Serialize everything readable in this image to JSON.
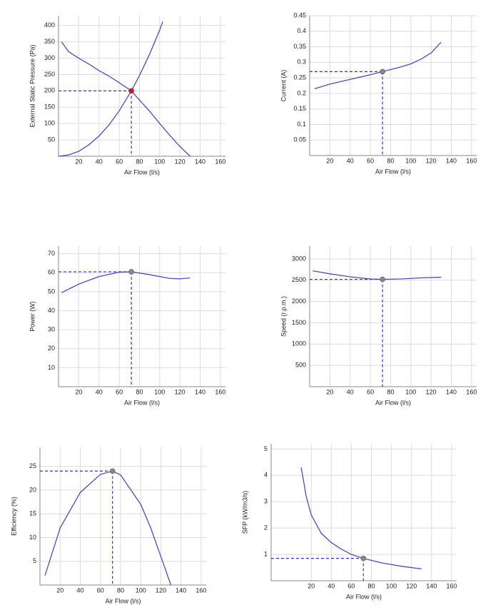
{
  "chart_data": [
    {
      "type": "line",
      "x_label": "Air Flow (l/s)",
      "y_label": "External Static Pressure (Pa)",
      "xlim": [
        0,
        165
      ],
      "ylim": [
        0,
        430
      ],
      "xticks": [
        20,
        40,
        60,
        80,
        100,
        120,
        140,
        160
      ],
      "yticks": [
        50,
        100,
        150,
        200,
        250,
        300,
        350,
        400
      ],
      "grid": true,
      "series": [
        {
          "color": "#4c4cc0",
          "x": [
            3,
            10,
            20,
            30,
            40,
            50,
            60,
            72,
            80,
            90,
            100,
            110,
            120,
            130
          ],
          "values": [
            350,
            320,
            300,
            282,
            262,
            245,
            225,
            200,
            172,
            138,
            100,
            64,
            30,
            0
          ]
        },
        {
          "color": "#4c4cc0",
          "x": [
            0,
            10,
            20,
            30,
            40,
            50,
            60,
            72,
            80,
            90,
            100,
            103
          ],
          "values": [
            0,
            4,
            15,
            35,
            62,
            96,
            139,
            200,
            247,
            312,
            386,
            412
          ]
        }
      ],
      "point": {
        "x": 72,
        "y": 200,
        "color": "#dd1111"
      }
    },
    {
      "type": "line",
      "x_label": "Air Flow (l/s)",
      "y_label": "Current (A)",
      "xlim": [
        0,
        165
      ],
      "ylim": [
        0,
        0.45
      ],
      "xticks": [
        20,
        40,
        60,
        80,
        100,
        120,
        140,
        160
      ],
      "yticks": [
        0.05,
        0.1,
        0.15,
        0.2,
        0.25,
        0.3,
        0.35,
        0.4,
        0.45
      ],
      "grid": true,
      "series": [
        {
          "color": "#4c4cc0",
          "x": [
            5,
            20,
            40,
            60,
            72,
            90,
            100,
            110,
            120,
            130
          ],
          "values": [
            0.215,
            0.23,
            0.245,
            0.26,
            0.27,
            0.285,
            0.295,
            0.31,
            0.33,
            0.365
          ]
        }
      ],
      "point": {
        "x": 72,
        "y": 0.27,
        "color": "#888888"
      }
    },
    {
      "type": "line",
      "x_label": "Air Flow (l/s)",
      "y_label": "Power (W)",
      "xlim": [
        0,
        165
      ],
      "ylim": [
        0,
        74
      ],
      "xticks": [
        20,
        40,
        60,
        80,
        100,
        120,
        140,
        160
      ],
      "yticks": [
        10,
        20,
        30,
        40,
        50,
        60,
        70
      ],
      "grid": true,
      "series": [
        {
          "color": "#4c4cc0",
          "x": [
            3,
            20,
            40,
            60,
            72,
            90,
            110,
            120,
            130
          ],
          "values": [
            49.5,
            54,
            58,
            60.3,
            60.5,
            59,
            57,
            56.8,
            57.3
          ]
        }
      ],
      "point": {
        "x": 72,
        "y": 60.5,
        "color": "#888888"
      }
    },
    {
      "type": "line",
      "x_label": "Air Flow (l/s)",
      "y_label": "Speed (r.p.m.)",
      "xlim": [
        0,
        165
      ],
      "ylim": [
        0,
        3300
      ],
      "xticks": [
        20,
        40,
        60,
        80,
        100,
        120,
        140,
        160
      ],
      "yticks": [
        500,
        1000,
        1500,
        2000,
        2500,
        3000
      ],
      "grid": true,
      "series": [
        {
          "color": "#4c4cc0",
          "x": [
            3,
            20,
            40,
            60,
            72,
            90,
            110,
            130
          ],
          "values": [
            2720,
            2650,
            2580,
            2530,
            2520,
            2530,
            2555,
            2570
          ]
        }
      ],
      "point": {
        "x": 72,
        "y": 2520,
        "color": "#888888"
      }
    },
    {
      "type": "line",
      "x_label": "Air Flow (l/s)",
      "y_label": "Efficiency (%)",
      "xlim": [
        0,
        165
      ],
      "ylim": [
        0,
        29
      ],
      "xticks": [
        20,
        40,
        60,
        80,
        100,
        120,
        140,
        160
      ],
      "yticks": [
        5,
        10,
        15,
        20,
        25
      ],
      "grid": true,
      "series": [
        {
          "color": "#4c4cc0",
          "x": [
            5,
            20,
            40,
            60,
            72,
            80,
            100,
            110,
            120,
            130
          ],
          "values": [
            2,
            12,
            19.5,
            23.3,
            24,
            23.2,
            17,
            12,
            6,
            0
          ]
        }
      ],
      "point": {
        "x": 72,
        "y": 24,
        "color": "#888888"
      }
    },
    {
      "type": "line",
      "x_label": "Air Flow (l/s)",
      "y_label": "SFP (kW/m3/s)",
      "xlim": [
        -20,
        165
      ],
      "ylim": [
        0,
        5.2
      ],
      "xticks": [
        20,
        40,
        60,
        80,
        100,
        120,
        140,
        160
      ],
      "yticks": [
        1,
        2,
        3,
        4,
        5
      ],
      "grid": true,
      "series": [
        {
          "color": "#4c4cc0",
          "x": [
            10,
            15,
            20,
            30,
            40,
            50,
            60,
            72,
            90,
            110,
            130
          ],
          "values": [
            4.3,
            3.2,
            2.5,
            1.8,
            1.45,
            1.2,
            1.0,
            0.85,
            0.68,
            0.55,
            0.45
          ]
        }
      ],
      "point": {
        "x": 72,
        "y": 0.85,
        "color": "#888888"
      }
    }
  ]
}
